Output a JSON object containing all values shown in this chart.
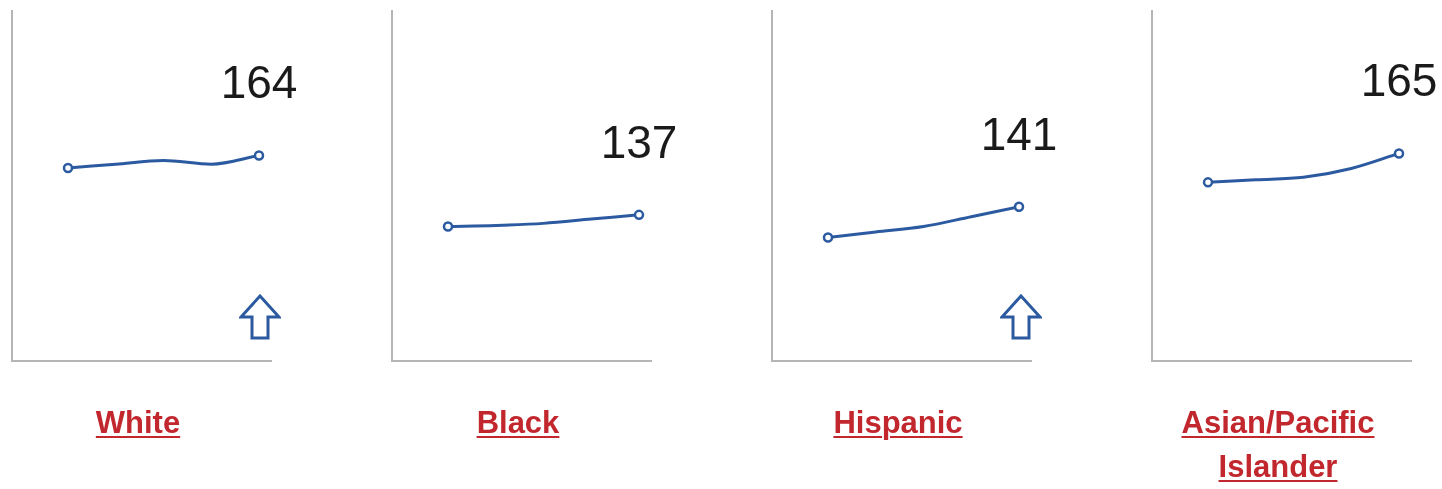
{
  "chart_data": [
    {
      "type": "line",
      "xlabel": "White",
      "categories": [
        null,
        null,
        null,
        null,
        null
      ],
      "values": [
        154,
        157,
        160,
        157,
        164
      ],
      "value_labels": [
        null,
        null,
        null,
        null,
        "164"
      ],
      "color": "#2c5aa0",
      "ylim": [
        0,
        280
      ],
      "tick_labels": false,
      "line_style": "solid"
    },
    {
      "type": "line",
      "xlabel": "Black",
      "categories": [
        null,
        null,
        null,
        null,
        null
      ],
      "values": [
        126,
        127,
        129,
        133,
        137
      ],
      "value_labels": [
        null,
        null,
        null,
        null,
        "137"
      ],
      "color": "#2c5aa0",
      "ylim": [
        0,
        329
      ],
      "tick_labels": false,
      "line_style": "solid"
    },
    {
      "type": "line",
      "xlabel": "Hispanic",
      "categories": [
        null,
        null,
        null,
        null,
        null
      ],
      "values": [
        113,
        118,
        123,
        132,
        141
      ],
      "value_labels": [
        null,
        null,
        null,
        null,
        "141"
      ],
      "color": "#2c5aa0",
      "ylim": [
        0,
        321
      ],
      "tick_labels": false,
      "line_style": "solid"
    },
    {
      "type": "line",
      "xlabel": "Asian/Pacific Islander",
      "categories": [
        null,
        null,
        null,
        null,
        null
      ],
      "values": [
        142,
        144,
        146,
        153,
        165
      ],
      "value_labels": [
        null,
        null,
        null,
        null,
        "165"
      ],
      "color": "#2c5aa0",
      "ylim": [
        0,
        279
      ],
      "tick_labels": false,
      "line_style": "solid"
    }
  ]
}
